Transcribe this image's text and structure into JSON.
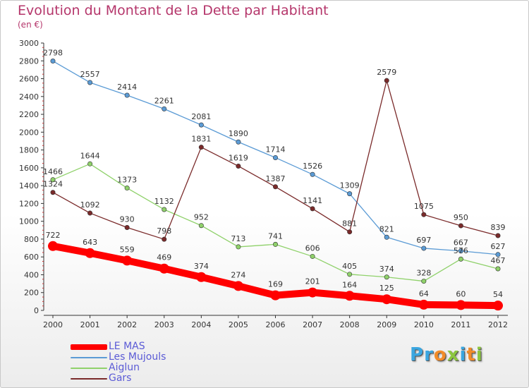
{
  "title": "Evolution du Montant de la Dette par Habitant",
  "subtitle": "(en €)",
  "brand": {
    "letters": [
      "P",
      "r",
      "o",
      "x",
      "i",
      "t",
      "i"
    ],
    "colors": [
      "#3aa6e0",
      "#3aa6e0",
      "#f28c28",
      "#8cc63f",
      "#3aa6e0",
      "#f28c28",
      "#8cc63f"
    ]
  },
  "chart_data": {
    "type": "line",
    "x": [
      "2000",
      "2001",
      "2002",
      "2003",
      "2004",
      "2005",
      "2006",
      "2007",
      "2008",
      "2009",
      "2010",
      "2011",
      "2012"
    ],
    "ylim": [
      0,
      3000
    ],
    "yticks": [
      "0",
      "200",
      "400",
      "600",
      "800",
      "1000",
      "1200",
      "1400",
      "1600",
      "1800",
      "2000",
      "2200",
      "2400",
      "2600",
      "2800",
      "3000"
    ],
    "grid": false,
    "legend_position": "bottom-left",
    "series": [
      {
        "name": "Les Mujouls",
        "color": "#5b9bd5",
        "values": [
          2798,
          2557,
          2414,
          2261,
          2081,
          1890,
          1714,
          1526,
          1309,
          821,
          697,
          667,
          627
        ]
      },
      {
        "name": "Aiglun",
        "color": "#8fd16a",
        "values": [
          1466,
          1644,
          1373,
          1132,
          952,
          713,
          741,
          606,
          405,
          374,
          328,
          576,
          467
        ]
      },
      {
        "name": "Gars",
        "color": "#7a2a2a",
        "values": [
          1324,
          1092,
          930,
          798,
          1831,
          1619,
          1387,
          1141,
          881,
          2579,
          1075,
          950,
          839
        ]
      },
      {
        "name": "LE MAS",
        "color": "#ff0000",
        "values": [
          722,
          643,
          559,
          469,
          374,
          274,
          169,
          201,
          164,
          125,
          64,
          60,
          54
        ]
      }
    ],
    "legend_order": [
      "LE MAS",
      "Les Mujouls",
      "Aiglun",
      "Gars"
    ]
  }
}
